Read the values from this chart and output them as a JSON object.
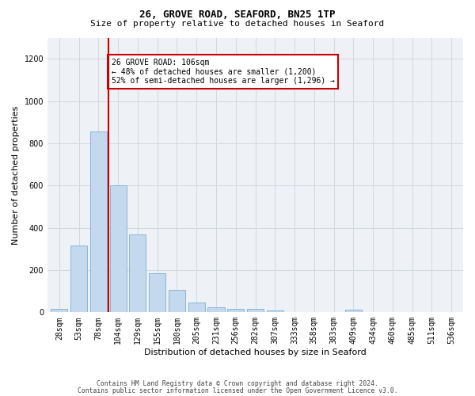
{
  "title_line1": "26, GROVE ROAD, SEAFORD, BN25 1TP",
  "title_line2": "Size of property relative to detached houses in Seaford",
  "xlabel": "Distribution of detached houses by size in Seaford",
  "ylabel": "Number of detached properties",
  "categories": [
    "28sqm",
    "53sqm",
    "78sqm",
    "104sqm",
    "129sqm",
    "155sqm",
    "180sqm",
    "205sqm",
    "231sqm",
    "256sqm",
    "282sqm",
    "307sqm",
    "333sqm",
    "358sqm",
    "383sqm",
    "409sqm",
    "434sqm",
    "460sqm",
    "485sqm",
    "511sqm",
    "536sqm"
  ],
  "values": [
    15,
    315,
    855,
    600,
    370,
    185,
    105,
    47,
    22,
    18,
    18,
    10,
    0,
    0,
    0,
    12,
    0,
    0,
    0,
    0,
    0
  ],
  "bar_color": "#c5d9ee",
  "bar_edge_color": "#7aadd4",
  "grid_color": "#d0d8e0",
  "annotation_box_color": "#cc0000",
  "vline_x": 2.5,
  "annotation_text_line1": "26 GROVE ROAD: 106sqm",
  "annotation_text_line2": "← 48% of detached houses are smaller (1,200)",
  "annotation_text_line3": "52% of semi-detached houses are larger (1,296) →",
  "ylim": [
    0,
    1300
  ],
  "yticks": [
    0,
    200,
    400,
    600,
    800,
    1000,
    1200
  ],
  "footer_line1": "Contains HM Land Registry data © Crown copyright and database right 2024.",
  "footer_line2": "Contains public sector information licensed under the Open Government Licence v3.0.",
  "bg_color": "#eef2f7",
  "title_fontsize": 9,
  "subtitle_fontsize": 8,
  "ylabel_fontsize": 8,
  "xlabel_fontsize": 8,
  "tick_fontsize": 7,
  "ann_fontsize": 7,
  "footer_fontsize": 5.8
}
